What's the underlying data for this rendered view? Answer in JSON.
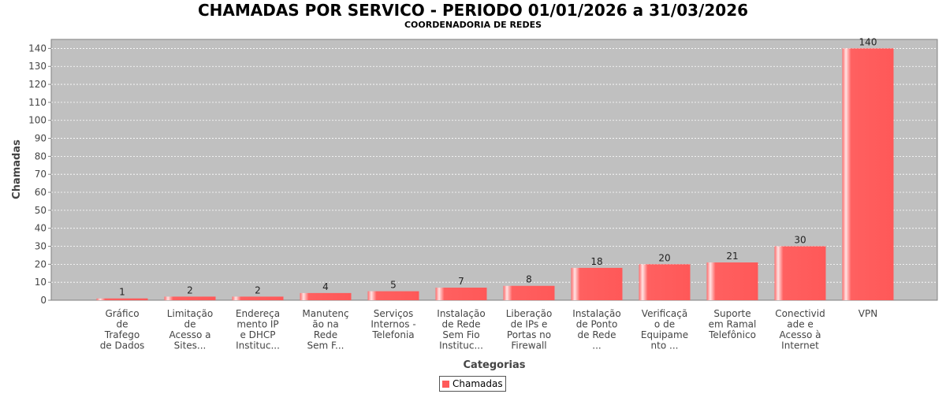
{
  "title": "CHAMADAS POR SERVICO - PERIODO 01/01/2026 a 31/03/2026",
  "subtitle": "COORDENADORIA DE REDES",
  "chart_data": {
    "type": "bar",
    "title": "CHAMADAS POR SERVICO - PERIODO 01/01/2026 a 31/03/2026",
    "subtitle": "COORDENADORIA DE REDES",
    "xlabel": "Categorias",
    "ylabel": "Chamadas",
    "ylim": [
      0,
      145
    ],
    "yticks": [
      0,
      10,
      20,
      30,
      40,
      50,
      60,
      70,
      80,
      90,
      100,
      110,
      120,
      130,
      140
    ],
    "grid": true,
    "legend_position": "bottom",
    "categories": [
      "Gráfico de Trafego de Dados",
      "Limitação de Acesso a Sites...",
      "Endereçamento IP e DHCP Instituc...",
      "Manutenção na Rede Sem F...",
      "Serviços Internos - Telefonia",
      "Instalação de Rede Sem Fio Instituc...",
      "Liberação de IPs e Portas no Firewall",
      "Instalação de Ponto de Rede ...",
      "Verificação de Equipamento ...",
      "Suporte em Ramal Telefônico",
      "Conectividade e Acesso à Internet",
      "VPN"
    ],
    "category_lines": [
      [
        "Gráfico",
        "de",
        "Trafego",
        "de Dados"
      ],
      [
        "Limitação",
        "de",
        "Acesso a",
        "Sites..."
      ],
      [
        "Endereça",
        "mento IP",
        "e DHCP",
        "Instituc..."
      ],
      [
        "Manutenç",
        "ão na",
        "Rede",
        "Sem F..."
      ],
      [
        "Serviços",
        "Internos -",
        "Telefonia"
      ],
      [
        "Instalação",
        "de Rede",
        "Sem Fio",
        "Instituc..."
      ],
      [
        "Liberação",
        "de IPs e",
        "Portas no",
        "Firewall"
      ],
      [
        "Instalação",
        "de Ponto",
        "de Rede",
        "..."
      ],
      [
        "Verificaçã",
        "o de",
        "Equipame",
        "nto ..."
      ],
      [
        "Suporte",
        "em Ramal",
        "Telefônico"
      ],
      [
        "Conectivid",
        "ade e",
        "Acesso à",
        "Internet"
      ],
      [
        "VPN"
      ]
    ],
    "series": [
      {
        "name": "Chamadas",
        "values": [
          1,
          2,
          2,
          4,
          5,
          7,
          8,
          18,
          20,
          21,
          30,
          140
        ],
        "color": "#ff5a5a"
      }
    ]
  }
}
